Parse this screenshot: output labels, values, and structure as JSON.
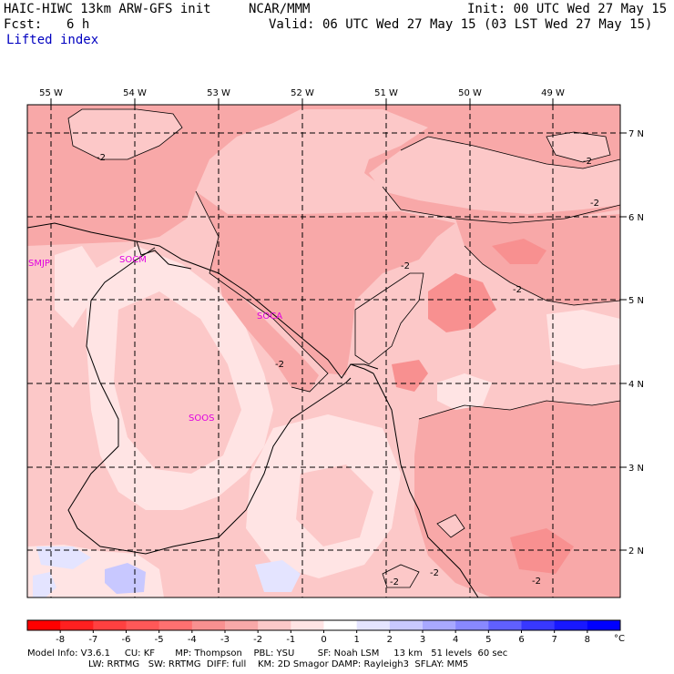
{
  "header": {
    "model_title": "HAIC-HIWC 13km ARW-GFS init",
    "org": "NCAR/MMM",
    "init_time": "Init: 00 UTC Wed 27 May 15",
    "fcst_label": "Fcst:",
    "fcst_value": "6 h",
    "valid_time": "Valid: 06 UTC Wed 27 May 15 (03 LST Wed 27 May 15)",
    "field_name": "Lifted index"
  },
  "map": {
    "longitude_labels": [
      "55 W",
      "54 W",
      "53 W",
      "52 W",
      "51 W",
      "50 W",
      "49 W"
    ],
    "latitude_labels": [
      "7 N",
      "6 N",
      "5 N",
      "4 N",
      "3 N",
      "2 N"
    ],
    "stations": [
      "SMJP",
      "SOCM",
      "SOCA",
      "SOOS"
    ],
    "contour_labels": [
      "-2",
      "-2",
      "-2",
      "-2",
      "-2",
      "-2",
      "-2",
      "-2",
      "-2"
    ]
  },
  "legend": {
    "ticks": [
      "-8",
      "-7",
      "-6",
      "-5",
      "-4",
      "-3",
      "-2",
      "-1",
      "0",
      "1",
      "2",
      "3",
      "4",
      "5",
      "6",
      "7",
      "8"
    ],
    "unit": "°C",
    "colors": [
      "#ff0000",
      "#ff2020",
      "#ff4040",
      "#ff5858",
      "#ff7070",
      "#f89090",
      "#f8a8a8",
      "#fcc8c8",
      "#ffe4e4",
      "#ffffff",
      "#e4e4ff",
      "#c8c8ff",
      "#a8a8ff",
      "#8888ff",
      "#6060ff",
      "#3838ff",
      "#1818ff",
      "#0000ff"
    ]
  },
  "footer": {
    "line1": "Model Info: V3.6.1     CU: KF       MP: Thompson    PBL: YSU        SF: Noah LSM     13 km   51 levels  60 sec",
    "line2": "LW: RRTMG   SW: RRTMG  DIFF: full    KM: 2D Smagor DAMP: Rayleigh3  SFLAY: MM5"
  }
}
